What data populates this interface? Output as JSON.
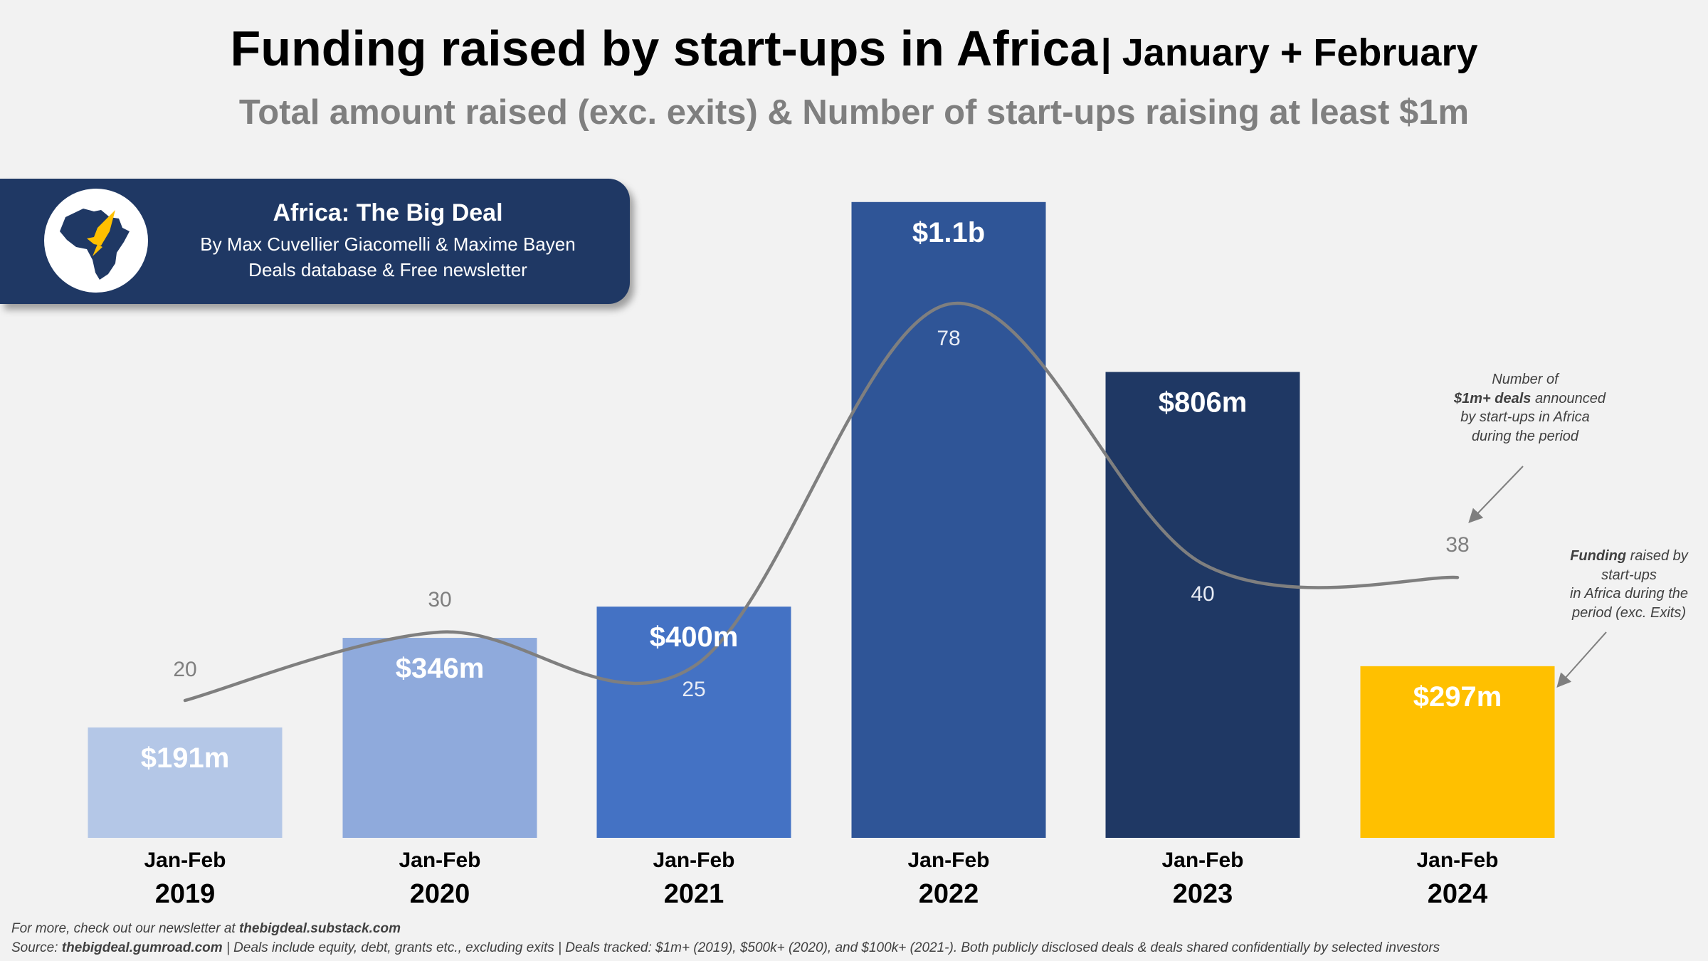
{
  "title": {
    "main": "Funding raised by start-ups in Africa",
    "period": "| January + February"
  },
  "subtitle": "Total amount raised (exc. exits) & Number of start-ups raising at least $1m",
  "banner": {
    "title": "Africa: The Big Deal",
    "authors": "By Max Cuvellier Giacomelli & Maxime Bayen",
    "tagline": "Deals database & Free newsletter",
    "logo_label": "Africa: The Big Deal"
  },
  "annotations": {
    "deals": {
      "line1": "Number of",
      "bold": "$1m+ deals",
      "rest": " announced",
      "line3": "by start-ups in Africa",
      "line4": "during the period"
    },
    "funding": {
      "bold": "Funding",
      "rest": " raised by",
      "line2": "start-ups",
      "line3": "in Africa during the",
      "line4": "period (exc. Exits)"
    }
  },
  "footer": {
    "line1_prefix": "For more, check out our newsletter at ",
    "line1_link": "thebigdeal.substack.com",
    "line2_prefix": "Source: ",
    "line2_link": "thebigdeal.gumroad.com",
    "line2_rest": " | Deals include equity, debt, grants etc., excluding exits | Deals tracked:  $1m+ (2019), $500k+ (2020), and $100k+ (2021-). Both publicly disclosed deals & deals shared confidentially by selected investors"
  },
  "colors": {
    "background": "#f2f2f2",
    "bars": [
      "#b4c7e7",
      "#8faadc",
      "#4472c4",
      "#2f5597",
      "#1f3864",
      "#ffc000"
    ],
    "line": "#7f7f7f",
    "banner": "#1f3864"
  },
  "chart_data": {
    "type": "bar",
    "title": "Funding raised by start-ups in Africa | January + February",
    "categories": [
      "Jan-Feb 2019",
      "Jan-Feb 2020",
      "Jan-Feb 2021",
      "Jan-Feb 2022",
      "Jan-Feb 2023",
      "Jan-Feb 2024"
    ],
    "period_labels": [
      "Jan-Feb",
      "Jan-Feb",
      "Jan-Feb",
      "Jan-Feb",
      "Jan-Feb",
      "Jan-Feb"
    ],
    "years": [
      "2019",
      "2020",
      "2021",
      "2022",
      "2023",
      "2024"
    ],
    "series": [
      {
        "name": "Funding raised (exc. exits), $m",
        "type": "bar",
        "values": [
          191,
          346,
          400,
          1100,
          806,
          297
        ],
        "labels": [
          "$191m",
          "$346m",
          "$400m",
          "$1.1b",
          "$806m",
          "$297m"
        ]
      },
      {
        "name": "Number of $1m+ deals",
        "type": "line",
        "values": [
          20,
          30,
          25,
          78,
          40,
          38
        ],
        "labels": [
          "20",
          "30",
          "25",
          "78",
          "40",
          "38"
        ]
      }
    ],
    "xlabel": "",
    "ylabel": "",
    "grid": false,
    "legend": "none"
  }
}
